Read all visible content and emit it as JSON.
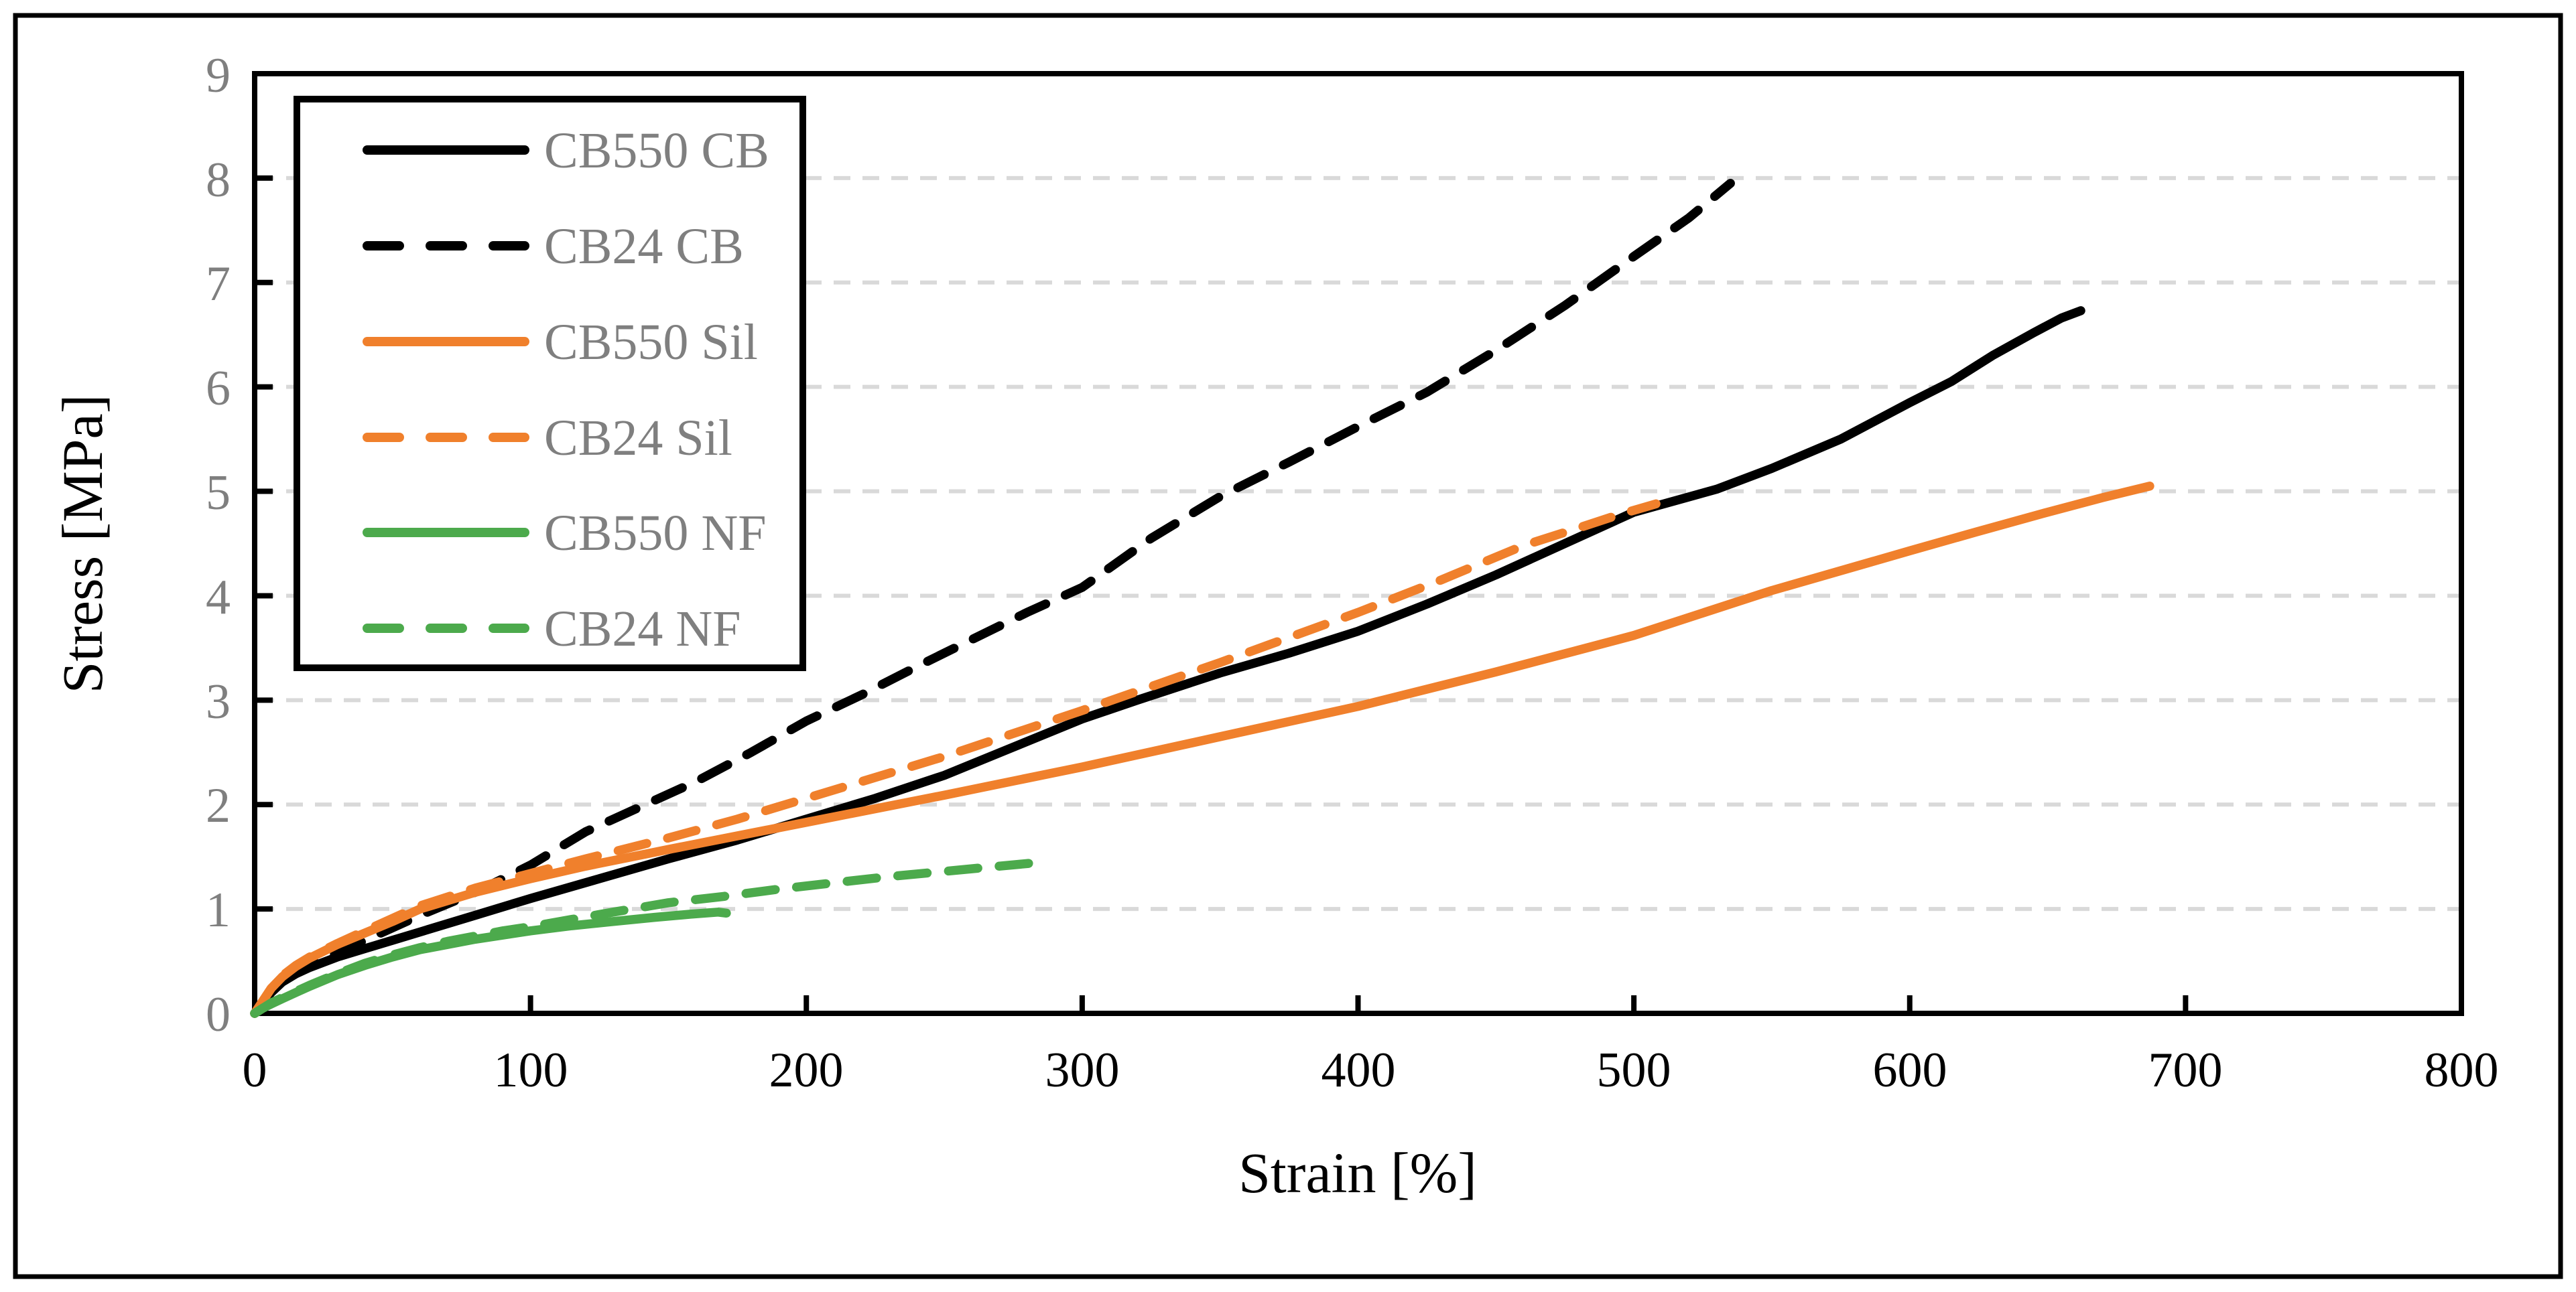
{
  "chart_data": {
    "type": "line",
    "title": "",
    "xlabel": "Strain [%]",
    "ylabel": "Stress [MPa]",
    "xlim": [
      0,
      800
    ],
    "ylim": [
      0,
      9
    ],
    "xticks": [
      0,
      100,
      200,
      300,
      400,
      500,
      600,
      700,
      800
    ],
    "yticks": [
      0,
      1,
      2,
      3,
      4,
      5,
      6,
      7,
      8,
      9
    ],
    "grid": "horizontal dashed gridlines at each integer stress value, ticks drawn inside plot",
    "legend_position": "top-left inside plot, boxed",
    "colors": {
      "black_series": "#000000",
      "orange_series": "#F0802C",
      "green_series": "#4CAA4C",
      "gridline": "#D9D9D9",
      "axis": "#000000",
      "ytick_label": "#7F7F7F",
      "xtick_label": "#000000",
      "legend_text": "#7F7F7F",
      "background": "#FFFFFF"
    },
    "series": [
      {
        "name": "CB550 CB",
        "color": "#000000",
        "style": "solid",
        "points": [
          [
            0,
            0
          ],
          [
            3,
            0.1
          ],
          [
            6,
            0.2
          ],
          [
            10,
            0.3
          ],
          [
            15,
            0.38
          ],
          [
            20,
            0.44
          ],
          [
            30,
            0.54
          ],
          [
            40,
            0.62
          ],
          [
            50,
            0.7
          ],
          [
            60,
            0.78
          ],
          [
            80,
            0.94
          ],
          [
            100,
            1.1
          ],
          [
            125,
            1.29
          ],
          [
            150,
            1.48
          ],
          [
            175,
            1.66
          ],
          [
            200,
            1.86
          ],
          [
            225,
            2.06
          ],
          [
            250,
            2.28
          ],
          [
            275,
            2.55
          ],
          [
            300,
            2.82
          ],
          [
            320,
            3.0
          ],
          [
            350,
            3.26
          ],
          [
            375,
            3.45
          ],
          [
            400,
            3.66
          ],
          [
            425,
            3.92
          ],
          [
            450,
            4.2
          ],
          [
            475,
            4.5
          ],
          [
            500,
            4.8
          ],
          [
            530,
            5.02
          ],
          [
            550,
            5.22
          ],
          [
            575,
            5.5
          ],
          [
            600,
            5.85
          ],
          [
            615,
            6.05
          ],
          [
            630,
            6.3
          ],
          [
            645,
            6.52
          ],
          [
            655,
            6.66
          ],
          [
            662,
            6.73
          ]
        ]
      },
      {
        "name": "CB24 CB",
        "color": "#000000",
        "style": "dashed",
        "points": [
          [
            0,
            0
          ],
          [
            3,
            0.1
          ],
          [
            6,
            0.21
          ],
          [
            10,
            0.32
          ],
          [
            15,
            0.4
          ],
          [
            20,
            0.47
          ],
          [
            30,
            0.58
          ],
          [
            40,
            0.7
          ],
          [
            50,
            0.82
          ],
          [
            60,
            0.94
          ],
          [
            80,
            1.16
          ],
          [
            100,
            1.42
          ],
          [
            120,
            1.74
          ],
          [
            140,
            1.98
          ],
          [
            160,
            2.22
          ],
          [
            180,
            2.5
          ],
          [
            200,
            2.8
          ],
          [
            220,
            3.05
          ],
          [
            240,
            3.32
          ],
          [
            260,
            3.58
          ],
          [
            280,
            3.84
          ],
          [
            300,
            4.08
          ],
          [
            325,
            4.55
          ],
          [
            350,
            4.95
          ],
          [
            375,
            5.28
          ],
          [
            400,
            5.62
          ],
          [
            425,
            5.95
          ],
          [
            450,
            6.35
          ],
          [
            475,
            6.78
          ],
          [
            500,
            7.25
          ],
          [
            520,
            7.62
          ],
          [
            535,
            7.95
          ]
        ]
      },
      {
        "name": "CB550 Sil",
        "color": "#F0802C",
        "style": "solid",
        "points": [
          [
            0,
            0
          ],
          [
            3,
            0.12
          ],
          [
            6,
            0.24
          ],
          [
            10,
            0.35
          ],
          [
            15,
            0.45
          ],
          [
            20,
            0.53
          ],
          [
            30,
            0.66
          ],
          [
            40,
            0.77
          ],
          [
            50,
            0.88
          ],
          [
            60,
            1.0
          ],
          [
            80,
            1.16
          ],
          [
            100,
            1.29
          ],
          [
            120,
            1.41
          ],
          [
            150,
            1.57
          ],
          [
            175,
            1.7
          ],
          [
            200,
            1.83
          ],
          [
            250,
            2.09
          ],
          [
            300,
            2.36
          ],
          [
            350,
            2.65
          ],
          [
            400,
            2.94
          ],
          [
            450,
            3.27
          ],
          [
            500,
            3.62
          ],
          [
            550,
            4.05
          ],
          [
            600,
            4.43
          ],
          [
            624,
            4.61
          ],
          [
            650,
            4.8
          ],
          [
            670,
            4.94
          ],
          [
            687,
            5.05
          ]
        ]
      },
      {
        "name": "CB24 Sil",
        "color": "#F0802C",
        "style": "dashed",
        "points": [
          [
            0,
            0
          ],
          [
            3,
            0.12
          ],
          [
            6,
            0.24
          ],
          [
            10,
            0.36
          ],
          [
            15,
            0.46
          ],
          [
            20,
            0.54
          ],
          [
            30,
            0.67
          ],
          [
            40,
            0.79
          ],
          [
            50,
            0.91
          ],
          [
            60,
            1.03
          ],
          [
            80,
            1.2
          ],
          [
            100,
            1.34
          ],
          [
            120,
            1.48
          ],
          [
            150,
            1.68
          ],
          [
            175,
            1.86
          ],
          [
            200,
            2.06
          ],
          [
            250,
            2.46
          ],
          [
            300,
            2.9
          ],
          [
            350,
            3.36
          ],
          [
            400,
            3.84
          ],
          [
            430,
            4.15
          ],
          [
            460,
            4.48
          ],
          [
            480,
            4.65
          ],
          [
            495,
            4.78
          ],
          [
            508,
            4.88
          ]
        ]
      },
      {
        "name": "CB550 NF",
        "color": "#4CAA4C",
        "style": "solid",
        "points": [
          [
            0,
            0
          ],
          [
            3,
            0.05
          ],
          [
            6,
            0.09
          ],
          [
            10,
            0.14
          ],
          [
            15,
            0.2
          ],
          [
            20,
            0.26
          ],
          [
            30,
            0.37
          ],
          [
            40,
            0.46
          ],
          [
            50,
            0.54
          ],
          [
            60,
            0.61
          ],
          [
            70,
            0.66
          ],
          [
            80,
            0.71
          ],
          [
            90,
            0.75
          ],
          [
            100,
            0.79
          ],
          [
            115,
            0.84
          ],
          [
            130,
            0.88
          ],
          [
            145,
            0.92
          ],
          [
            158,
            0.95
          ],
          [
            168,
            0.97
          ],
          [
            171,
            0.96
          ]
        ]
      },
      {
        "name": "CB24 NF",
        "color": "#4CAA4C",
        "style": "dashed",
        "points": [
          [
            0,
            0
          ],
          [
            3,
            0.05
          ],
          [
            6,
            0.1
          ],
          [
            10,
            0.15
          ],
          [
            15,
            0.21
          ],
          [
            20,
            0.27
          ],
          [
            30,
            0.38
          ],
          [
            40,
            0.48
          ],
          [
            50,
            0.56
          ],
          [
            60,
            0.63
          ],
          [
            70,
            0.69
          ],
          [
            80,
            0.74
          ],
          [
            90,
            0.79
          ],
          [
            100,
            0.83
          ],
          [
            115,
            0.9
          ],
          [
            130,
            0.97
          ],
          [
            150,
            1.06
          ],
          [
            170,
            1.12
          ],
          [
            190,
            1.19
          ],
          [
            210,
            1.25
          ],
          [
            230,
            1.31
          ],
          [
            250,
            1.36
          ],
          [
            270,
            1.41
          ],
          [
            286,
            1.45
          ]
        ]
      }
    ]
  }
}
